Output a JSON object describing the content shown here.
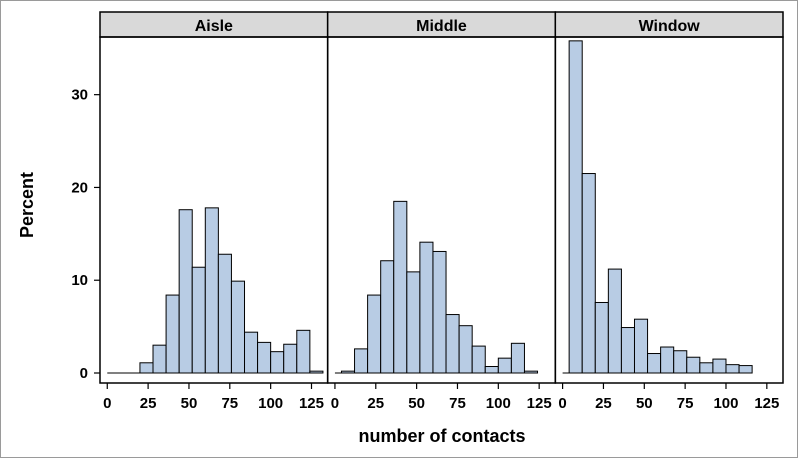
{
  "chart_data": {
    "type": "bar",
    "title": "",
    "xlabel": "number of contacts",
    "ylabel": "Percent",
    "ylim": [
      0,
      36
    ],
    "yticks": [
      0,
      10,
      20,
      30
    ],
    "xlim": [
      -2,
      130
    ],
    "xticks": [
      0,
      25,
      50,
      75,
      100,
      125
    ],
    "bin_width": 8,
    "bar_color": "#b8cce4",
    "panels": [
      {
        "label": "Aisle",
        "bin_start": 20,
        "values": [
          1.1,
          3.0,
          8.4,
          17.6,
          11.4,
          17.8,
          12.8,
          9.9,
          4.4,
          3.3,
          2.3,
          3.1,
          4.6,
          0.2
        ]
      },
      {
        "label": "Middle",
        "bin_start": 4,
        "values": [
          0.2,
          2.6,
          8.4,
          12.1,
          18.5,
          10.9,
          14.1,
          13.1,
          6.3,
          5.1,
          2.9,
          0.7,
          1.6,
          3.2,
          0.2
        ]
      },
      {
        "label": "Window",
        "bin_start": 4,
        "values": [
          35.8,
          21.5,
          7.6,
          11.2,
          4.9,
          5.8,
          2.1,
          2.8,
          2.4,
          1.7,
          1.1,
          1.5,
          0.9,
          0.8
        ]
      }
    ]
  }
}
